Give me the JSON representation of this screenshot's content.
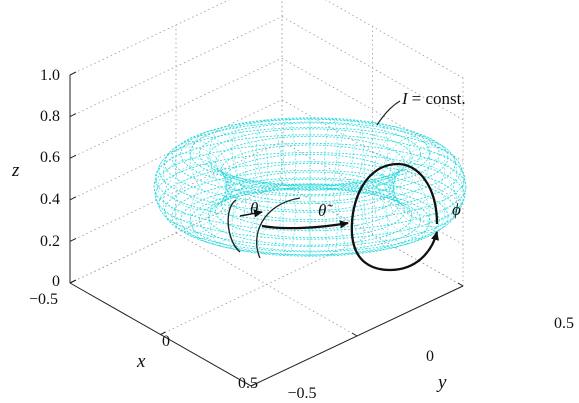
{
  "chart_data": {
    "type": "surface",
    "surface": "torus",
    "surface_color": "#22d8dd",
    "xlabel": "x",
    "ylabel": "y",
    "zlabel": "z",
    "x_ticks": [
      "−0.5",
      "0",
      "0.5"
    ],
    "y_ticks": [
      "−0.5",
      "0",
      "0.5"
    ],
    "z_ticks": [
      "0",
      "0.2",
      "0.4",
      "0.6",
      "0.8",
      "1.0"
    ],
    "xlim": [
      -0.5,
      0.5
    ],
    "ylim": [
      -0.5,
      0.5
    ],
    "zlim": [
      0,
      1.0
    ],
    "grid": true,
    "annotations": {
      "invariant": "I = const.",
      "invariant_lhs": "I",
      "invariant_rhs": "= const.",
      "theta": "θ",
      "theta_tilde": "θ̃",
      "phi": "ϕ"
    }
  }
}
